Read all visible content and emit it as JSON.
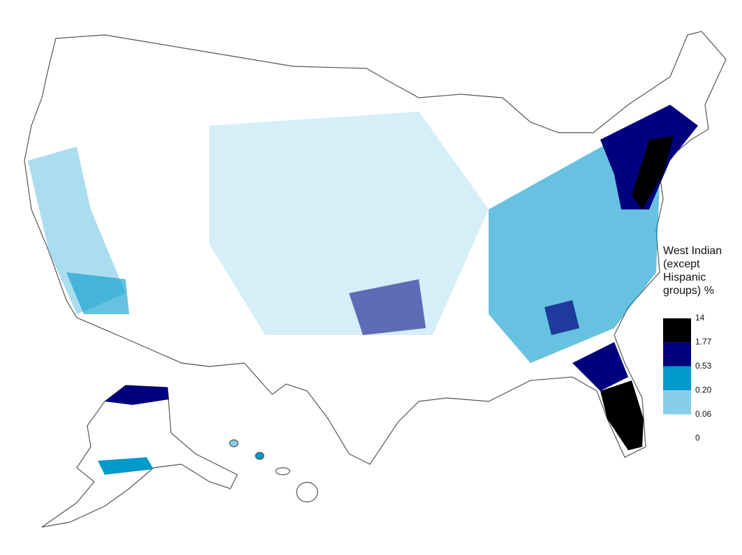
{
  "legend": {
    "title": "West Indian (except Hispanic groups) %",
    "breaks": [
      14,
      1.77,
      0.53,
      {
        "value": 0.2,
        "label": "0.20"
      },
      0.06,
      0
    ],
    "colors": [
      "#000000",
      "#00007f",
      "#0099cc",
      "#87ceeb",
      "#ffffff"
    ]
  }
}
